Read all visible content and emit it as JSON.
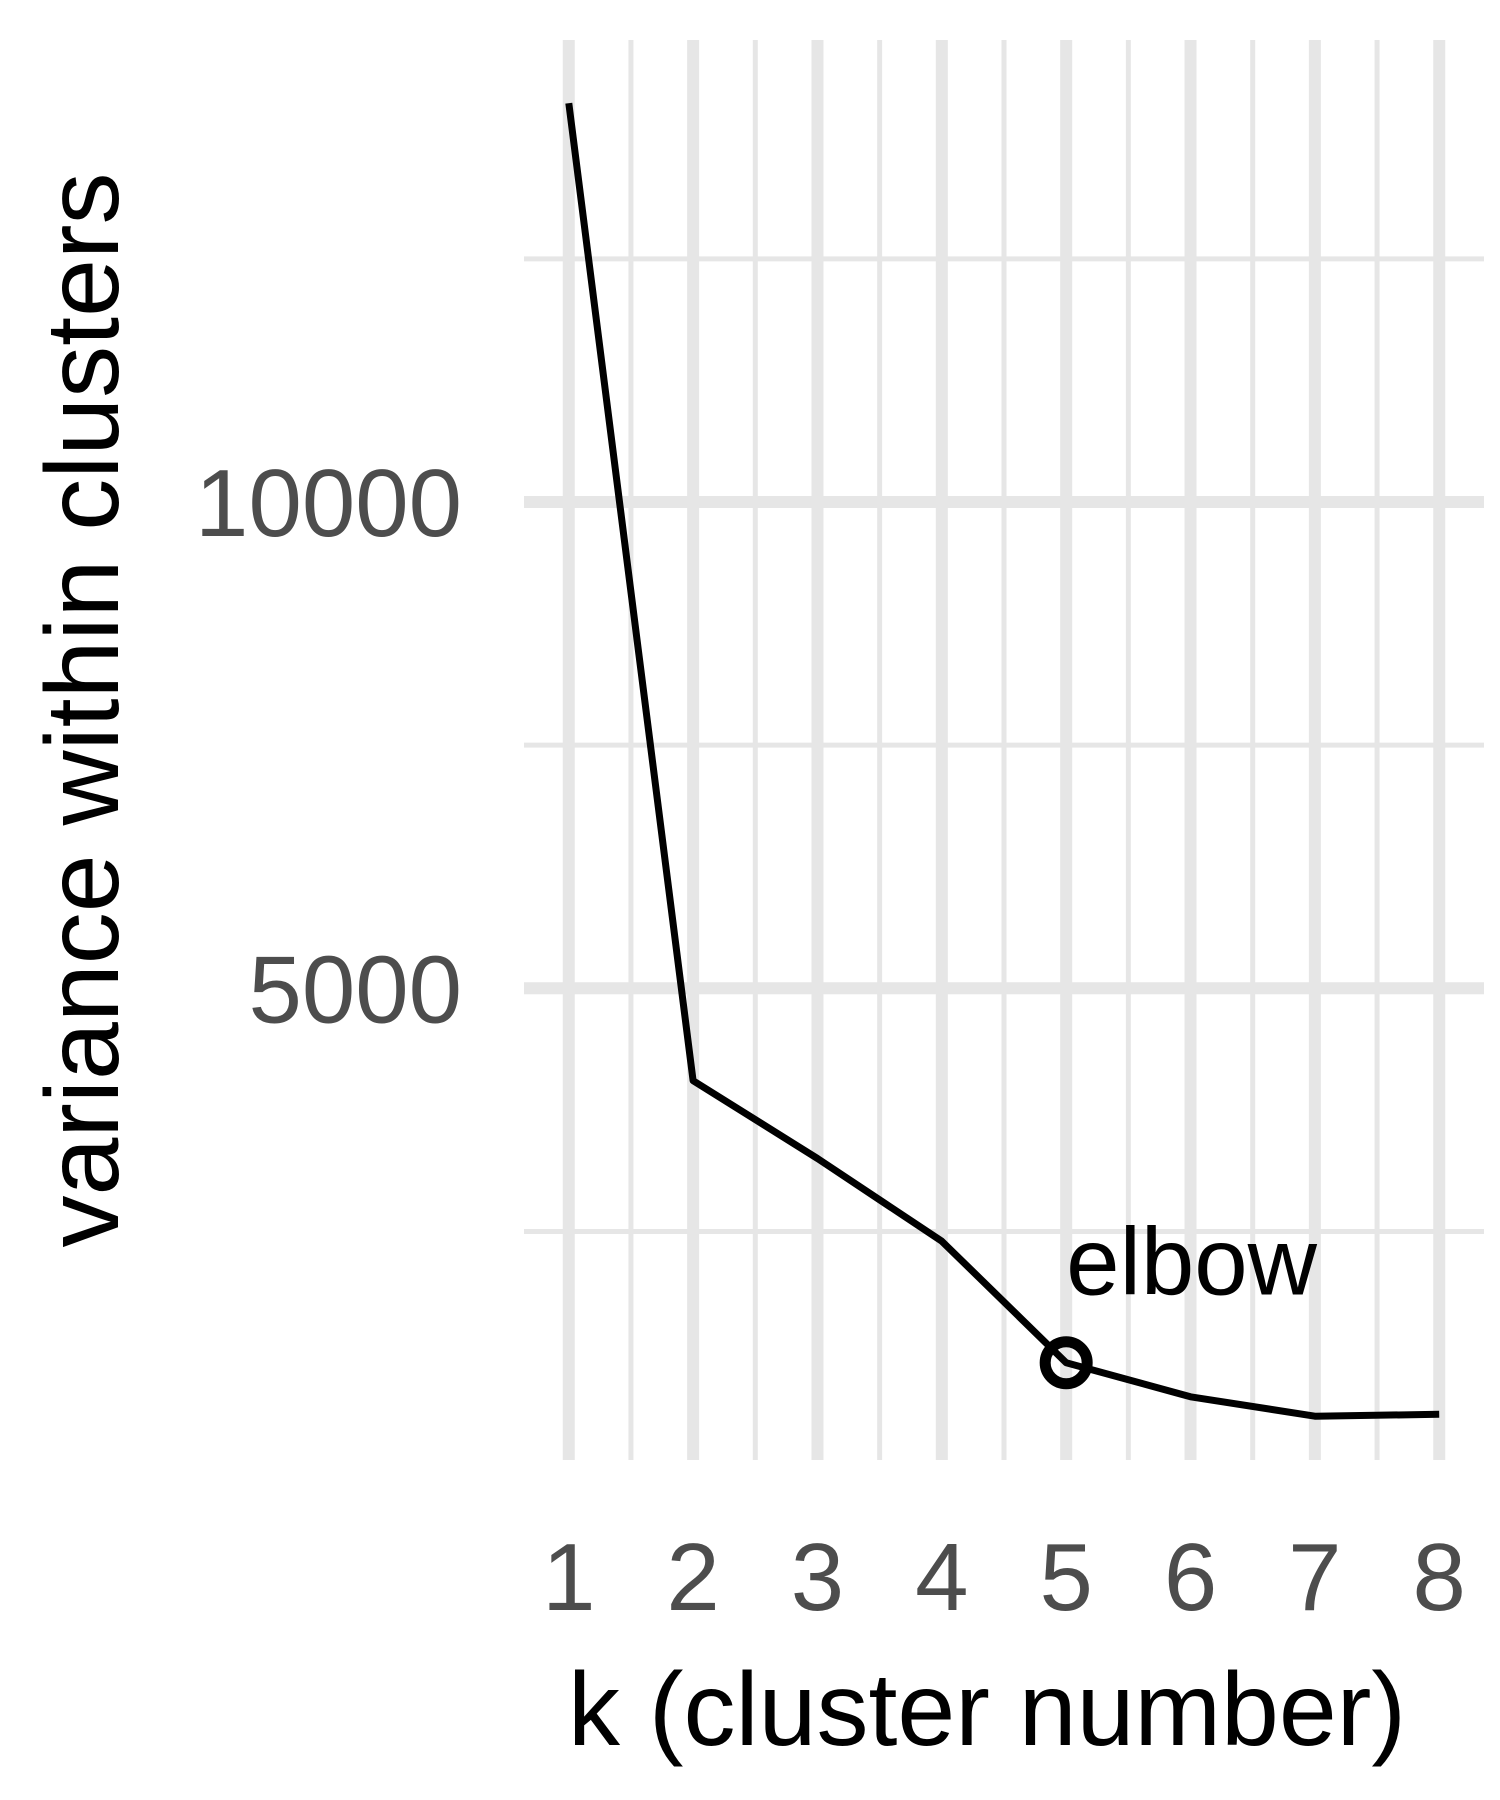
{
  "chart_data": {
    "type": "line",
    "title": "",
    "xlabel": "k (cluster number)",
    "ylabel": "variance within clusters",
    "x": [
      1,
      2,
      3,
      4,
      5,
      6,
      7,
      8
    ],
    "x_tick_labels": [
      "1",
      "2",
      "3",
      "4",
      "5",
      "6",
      "7",
      "8"
    ],
    "y_ticks": [
      5000,
      10000
    ],
    "y_tick_labels": [
      "5000",
      "10000"
    ],
    "series": [
      {
        "values": [
          14100,
          4050,
          3250,
          2400,
          1150,
          800,
          600,
          620
        ]
      }
    ],
    "xlim": [
      0.64,
      8.36
    ],
    "ylim": [
      150,
      14750
    ],
    "grid": true,
    "legend": "none",
    "annotations": [
      {
        "text": "elbow",
        "x": 5,
        "y": 1150,
        "marker": "open-circle"
      }
    ],
    "colors": {
      "line": "#000000",
      "grid": "#e6e6e6",
      "tick_text": "#4d4d4d",
      "background": "#ffffff"
    }
  }
}
